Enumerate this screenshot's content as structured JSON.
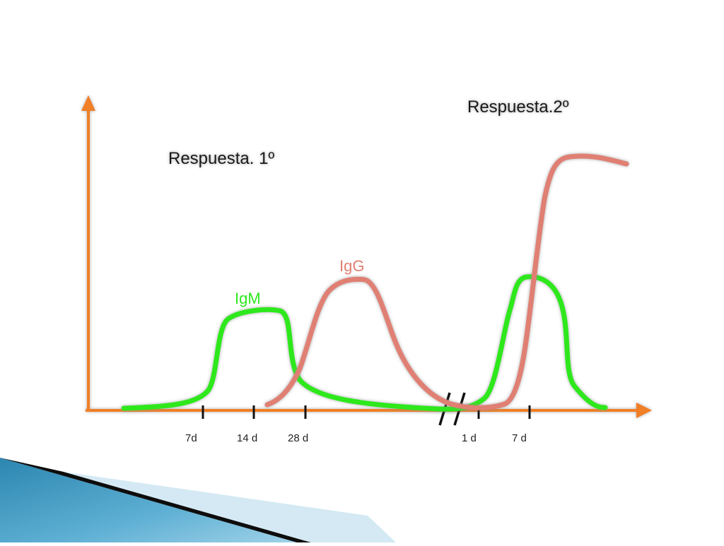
{
  "titles": {
    "primary": "Respuesta. 1º",
    "secondary": "Respuesta.2º"
  },
  "curves": {
    "igm": {
      "label": "IgM",
      "color": "#2ee81e"
    },
    "igg": {
      "label": "IgG",
      "color": "#e07f73"
    }
  },
  "axis": {
    "color": "#f07f28",
    "ticks": [
      "7d",
      "14 d",
      "28 d",
      "1 d",
      "7 d"
    ],
    "break_mark": "//"
  },
  "decor": {
    "banner_colors": [
      "#1f6f95",
      "#6fb6d6",
      "#0b0b0b",
      "#cfe6f2"
    ]
  }
}
